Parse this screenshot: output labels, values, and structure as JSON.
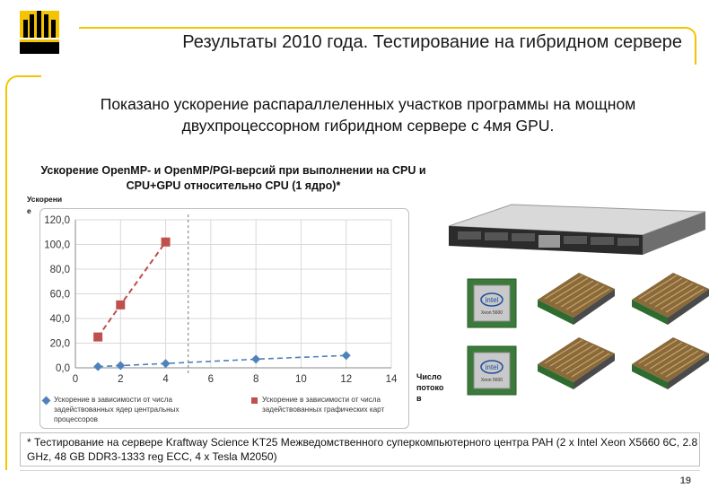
{
  "slide": {
    "title": "Результаты 2010 года. Тестирование на гибридном сервере",
    "intro": "Показано ускорение распараллеленных участков программы  на мощном двухпроцессорном гибридном сервере с 4мя GPU.",
    "footnote": "* Тестирование на сервере Kraftway Science KT25 Межведомственного суперкомпьютерного центра РАН (2 x Intel Xeon X5660 6C, 2.8 GHz, 48 GB DDR3-1333 reg ECC, 4 x Tesla M2050)",
    "page_number": "19",
    "cpu_chip_text": "intel",
    "cpu_chip_sub": "Xeon 5600"
  },
  "colors": {
    "accent": "#f5c400",
    "series_cpu": "#4f81bd",
    "series_gpu": "#c0504d"
  },
  "chart_data": {
    "type": "line",
    "title": "Ускорение OpenMP- и OpenMP/PGI-версий при выполнении на  CPU и CPU+GPU относительно CPU (1 ядро)*",
    "ylabel": "Ускорение",
    "xlabel": "Число потоков",
    "xlim": [
      0,
      14
    ],
    "ylim": [
      0,
      120
    ],
    "x_ticks": [
      "0",
      "2",
      "4",
      "6",
      "8",
      "10",
      "12",
      "14"
    ],
    "y_ticks": [
      "0,0",
      "20,0",
      "40,0",
      "60,0",
      "80,0",
      "100,0",
      "120,0"
    ],
    "grid": true,
    "series": [
      {
        "name": "Ускорение в зависимости от числа задействованных ядер центральных процессоров",
        "marker": "diamond",
        "x": [
          1,
          2,
          4,
          8,
          12
        ],
        "y": [
          1,
          1.8,
          3.5,
          7,
          10
        ]
      },
      {
        "name": "Ускорение в зависимости от числа задействованных графических карт",
        "marker": "square",
        "x": [
          1,
          2,
          4
        ],
        "y": [
          25,
          51,
          102
        ]
      }
    ]
  }
}
